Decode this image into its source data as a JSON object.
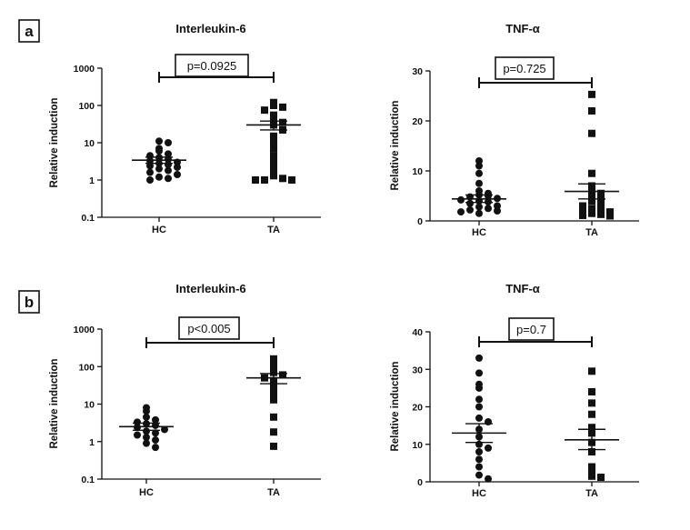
{
  "panels": [
    {
      "letter": "a"
    },
    {
      "letter": "b"
    }
  ],
  "chart_data": [
    {
      "panel": "a",
      "type": "scatter",
      "title": "Interleukin-6",
      "ylabel": "Relative induction",
      "scale": "log",
      "ylim": [
        0.1,
        1000
      ],
      "yticks": [
        "0.1",
        "1",
        "10",
        "100",
        "1000"
      ],
      "categories": [
        "HC",
        "TA"
      ],
      "p_label": "p=0.0925",
      "series": [
        {
          "name": "HC",
          "marker": "circle",
          "mean": 3.4,
          "sem_low": 2.8,
          "sem_high": 4.1,
          "values": [
            11,
            10,
            7,
            6,
            5,
            4.5,
            4,
            3.6,
            3.3,
            3,
            2.8,
            2.6,
            2.4,
            2.2,
            2,
            1.8,
            1.6,
            1.4,
            1.2,
            1.1,
            1.0
          ]
        },
        {
          "name": "TA",
          "marker": "square",
          "mean": 30,
          "sem_low": 22,
          "sem_high": 38,
          "values": [
            120,
            100,
            90,
            75,
            55,
            45,
            35,
            30,
            22,
            15,
            10,
            7,
            4.5,
            3.5,
            2.5,
            1.8,
            1.3,
            1.1,
            1.0,
            1.0,
            1.0
          ]
        }
      ]
    },
    {
      "panel": "a",
      "type": "scatter",
      "title": "TNF-α",
      "ylabel": "Relative induction",
      "scale": "linear",
      "ylim": [
        0,
        30
      ],
      "yticks": [
        "0",
        "10",
        "20",
        "30"
      ],
      "categories": [
        "HC",
        "TA"
      ],
      "p_label": "p=0.725",
      "series": [
        {
          "name": "HC",
          "marker": "circle",
          "mean": 4.4,
          "sem_low": 3.7,
          "sem_high": 5.2,
          "values": [
            12,
            11,
            9.5,
            7.5,
            6,
            5.5,
            5.2,
            5,
            4.8,
            4.5,
            4.2,
            4,
            3.8,
            3.5,
            3,
            2.8,
            2.5,
            2.2,
            2,
            1.8,
            1.5
          ]
        },
        {
          "name": "TA",
          "marker": "square",
          "mean": 5.9,
          "sem_low": 4.4,
          "sem_high": 7.4,
          "values": [
            25.3,
            22,
            17.5,
            9.5,
            7,
            6,
            5.5,
            5,
            4.5,
            4,
            3.5,
            3,
            2.5,
            2.2,
            2,
            1.8,
            1.5,
            1.3,
            1.1,
            1
          ]
        }
      ]
    },
    {
      "panel": "b",
      "type": "scatter",
      "title": "Interleukin-6",
      "ylabel": "Relative induction",
      "scale": "log",
      "ylim": [
        0.1,
        1000
      ],
      "yticks": [
        "0.1",
        "1",
        "10",
        "100",
        "1000"
      ],
      "categories": [
        "HC",
        "TA"
      ],
      "p_label": "p<0.005",
      "series": [
        {
          "name": "HC",
          "marker": "circle",
          "mean": 2.5,
          "sem_low": 2.0,
          "sem_high": 3.1,
          "values": [
            8,
            6.5,
            4.5,
            3.8,
            3.3,
            3,
            2.7,
            2.4,
            2.1,
            1.9,
            1.7,
            1.5,
            1.3,
            1.1,
            0.9,
            0.7
          ]
        },
        {
          "name": "TA",
          "marker": "square",
          "mean": 50,
          "sem_low": 35,
          "sem_high": 65,
          "values": [
            160,
            110,
            95,
            70,
            60,
            50,
            42,
            30,
            20,
            13,
            4.5,
            1.8,
            0.75
          ]
        }
      ]
    },
    {
      "panel": "b",
      "type": "scatter",
      "title": "TNF-α",
      "ylabel": "Relative induction",
      "scale": "linear",
      "ylim": [
        0,
        40
      ],
      "yticks": [
        "0",
        "10",
        "20",
        "30",
        "40"
      ],
      "categories": [
        "HC",
        "TA"
      ],
      "p_label": "p=0.7",
      "series": [
        {
          "name": "HC",
          "marker": "circle",
          "mean": 13,
          "sem_low": 10.5,
          "sem_high": 15.5,
          "values": [
            33,
            29,
            26,
            25,
            22,
            20,
            17,
            16,
            14,
            12,
            10,
            9,
            8,
            6,
            4,
            1.8,
            0.8
          ]
        },
        {
          "name": "TA",
          "marker": "square",
          "mean": 11.2,
          "sem_low": 8.6,
          "sem_high": 14,
          "values": [
            29.5,
            24,
            21,
            18,
            14.5,
            13,
            10.5,
            8,
            4,
            3,
            1.5,
            1.2
          ]
        }
      ]
    }
  ]
}
